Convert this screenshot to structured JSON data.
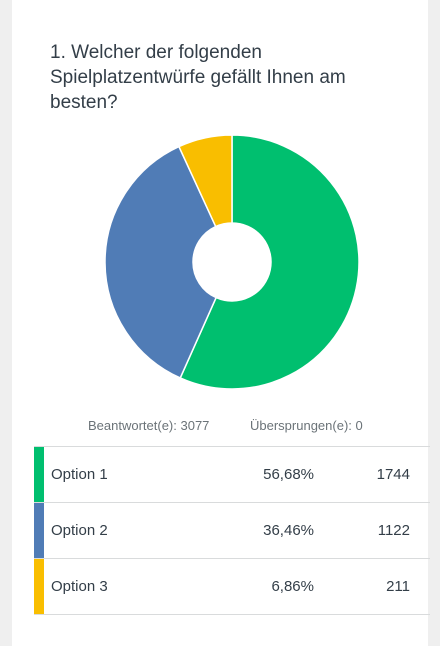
{
  "question": {
    "title": "1. Welcher der folgenden Spielplatzentwürfe gefällt Ihnen am besten?"
  },
  "summary": {
    "answered": "Beantwortet(e): 3077",
    "skipped": "Übersprungen(e): 0"
  },
  "rows": [
    {
      "label": "Option 1",
      "percent": "56,68%",
      "count": "1744",
      "color": "#00bf6f"
    },
    {
      "label": "Option 2",
      "percent": "36,46%",
      "count": "1122",
      "color": "#507cb6"
    },
    {
      "label": "Option 3",
      "percent": "6,86%",
      "count": "211",
      "color": "#f9be00"
    }
  ],
  "chart_data": {
    "type": "pie",
    "donut": true,
    "categories": [
      "Option 1",
      "Option 2",
      "Option 3"
    ],
    "values": [
      56.68,
      36.46,
      6.86
    ],
    "colors": [
      "#00bf6f",
      "#507cb6",
      "#f9be00"
    ]
  }
}
